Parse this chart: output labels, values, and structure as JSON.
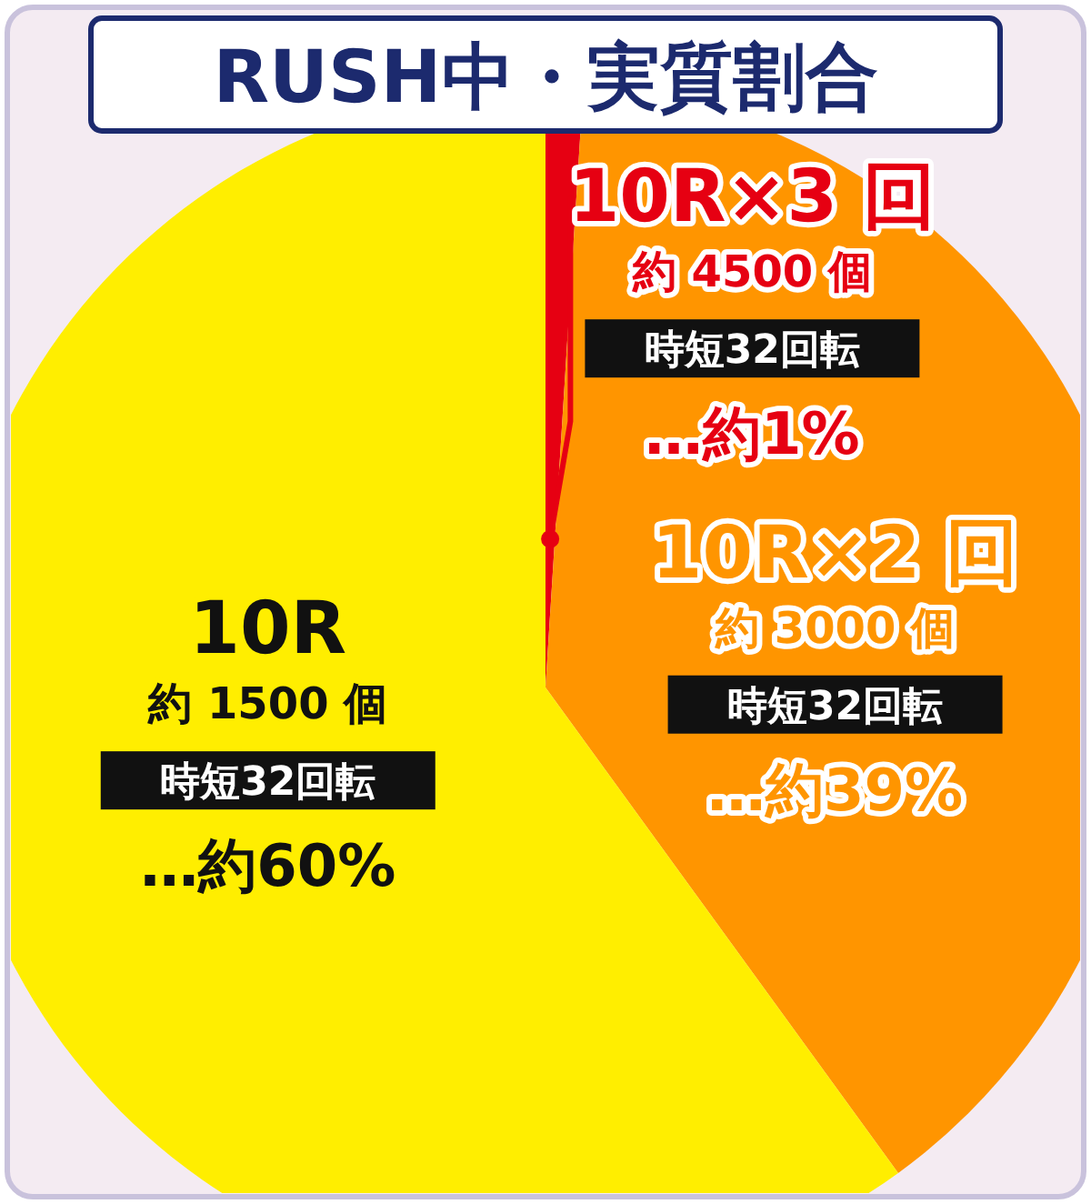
{
  "chart_data": {
    "type": "pie",
    "title": "RUSH中・実質割合",
    "categories": [
      "10R×3 回",
      "10R×2 回",
      "10R"
    ],
    "values": [
      1,
      39,
      60
    ],
    "colors": [
      "#e60012",
      "#ff9500",
      "#ffee00"
    ],
    "annotations": [
      {
        "text": "約 4500 個",
        "x": "10R×3 回"
      },
      {
        "text": "時短32回転",
        "x": "10R×3 回"
      },
      {
        "text": "…約1%",
        "x": "10R×3 回"
      },
      {
        "text": "約 3000 個",
        "x": "10R×2 回"
      },
      {
        "text": "時短32回転",
        "x": "10R×2 回"
      },
      {
        "text": "…約39%",
        "x": "10R×2 回"
      },
      {
        "text": "約 1500 個",
        "x": "10R"
      },
      {
        "text": "時短32回転",
        "x": "10R"
      },
      {
        "text": "…約60%",
        "x": "10R"
      }
    ]
  }
}
